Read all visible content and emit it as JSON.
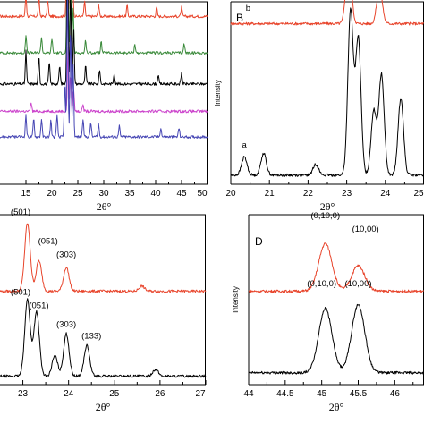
{
  "chart_data": [
    {
      "id": "A",
      "type": "line",
      "panel_label": "",
      "xlabel": "2θ°",
      "ylabel": "",
      "xlim": [
        10,
        50
      ],
      "xticks": [
        15,
        20,
        25,
        30,
        35,
        40,
        45,
        50
      ],
      "grid": false,
      "series": [
        {
          "name": "",
          "color": "#e8452c",
          "baseline": 0.92,
          "peaks": [
            [
              22.9,
              0.55
            ],
            [
              23.5,
              0.35
            ],
            [
              24.0,
              0.2
            ],
            [
              15.0,
              0.12
            ],
            [
              17.5,
              0.1
            ],
            [
              19.2,
              0.09
            ],
            [
              26.3,
              0.08
            ],
            [
              29.0,
              0.07
            ],
            [
              34.5,
              0.06
            ],
            [
              40.2,
              0.05
            ],
            [
              45.0,
              0.05
            ]
          ]
        },
        {
          "name": "",
          "color": "#3a8a3a",
          "baseline": 0.72,
          "peaks": [
            [
              23.0,
              0.8
            ],
            [
              23.6,
              0.45
            ],
            [
              24.1,
              0.25
            ],
            [
              15.0,
              0.1
            ],
            [
              18.0,
              0.09
            ],
            [
              20.0,
              0.08
            ],
            [
              26.5,
              0.07
            ],
            [
              29.5,
              0.06
            ],
            [
              36.0,
              0.05
            ],
            [
              45.5,
              0.05
            ]
          ]
        },
        {
          "name": "",
          "color": "#000000",
          "baseline": 0.55,
          "peaks": [
            [
              23.0,
              1.0
            ],
            [
              23.6,
              0.5
            ],
            [
              24.2,
              0.3
            ],
            [
              15.0,
              0.18
            ],
            [
              17.5,
              0.15
            ],
            [
              19.5,
              0.12
            ],
            [
              21.5,
              0.1
            ],
            [
              26.5,
              0.1
            ],
            [
              29.2,
              0.08
            ],
            [
              32.0,
              0.06
            ],
            [
              40.5,
              0.05
            ],
            [
              45.0,
              0.06
            ]
          ]
        },
        {
          "name": "",
          "color": "#cc44cc",
          "baseline": 0.4,
          "peaks": [
            [
              23.1,
              0.35
            ],
            [
              23.6,
              0.2
            ],
            [
              24.2,
              0.12
            ],
            [
              16.0,
              0.05
            ],
            [
              26.0,
              0.04
            ]
          ]
        },
        {
          "name": "",
          "color": "#4646b4",
          "baseline": 0.26,
          "peaks": [
            [
              23.0,
              0.85
            ],
            [
              23.6,
              0.6
            ],
            [
              24.1,
              0.4
            ],
            [
              22.5,
              0.3
            ],
            [
              15.0,
              0.12
            ],
            [
              16.5,
              0.1
            ],
            [
              18.0,
              0.1
            ],
            [
              19.8,
              0.09
            ],
            [
              21.0,
              0.12
            ],
            [
              26.0,
              0.1
            ],
            [
              27.5,
              0.08
            ],
            [
              29.0,
              0.07
            ],
            [
              33.0,
              0.06
            ],
            [
              41.0,
              0.05
            ],
            [
              44.5,
              0.05
            ]
          ]
        }
      ],
      "annotations": []
    },
    {
      "id": "B",
      "type": "line",
      "panel_label": "B",
      "xlabel": "2θ°",
      "ylabel": "Intensity",
      "xlim": [
        20,
        25
      ],
      "xticks": [
        20,
        21,
        22,
        23,
        24,
        25
      ],
      "grid": false,
      "series": [
        {
          "name": "b",
          "color": "#e8452c",
          "baseline": 0.88,
          "peaks": [
            [
              23.05,
              0.35
            ],
            [
              23.85,
              0.2
            ]
          ]
        },
        {
          "name": "a",
          "color": "#000000",
          "baseline": 0.05,
          "peaks": [
            [
              20.35,
              0.1
            ],
            [
              20.85,
              0.12
            ],
            [
              22.2,
              0.06
            ],
            [
              23.1,
              0.9
            ],
            [
              23.3,
              0.75
            ],
            [
              23.7,
              0.35
            ],
            [
              23.9,
              0.55
            ],
            [
              24.4,
              0.42
            ]
          ]
        }
      ],
      "annotations": [
        {
          "text": "b",
          "x": 20.45,
          "y": 0.95
        },
        {
          "text": "a",
          "x": 20.35,
          "y": 0.2
        }
      ]
    },
    {
      "id": "C",
      "type": "line",
      "panel_label": "",
      "xlabel": "2θ°",
      "ylabel": "",
      "xlim": [
        22.5,
        27
      ],
      "xticks": [
        23,
        24,
        25,
        26,
        27
      ],
      "grid": false,
      "series": [
        {
          "name": "",
          "color": "#e8452c",
          "baseline": 0.55,
          "peaks": [
            [
              23.1,
              0.4
            ],
            [
              23.35,
              0.18
            ],
            [
              23.95,
              0.14
            ],
            [
              25.6,
              0.03
            ]
          ]
        },
        {
          "name": "",
          "color": "#000000",
          "baseline": 0.05,
          "peaks": [
            [
              23.1,
              0.45
            ],
            [
              23.3,
              0.38
            ],
            [
              23.7,
              0.12
            ],
            [
              23.95,
              0.25
            ],
            [
              24.4,
              0.18
            ],
            [
              25.9,
              0.04
            ]
          ]
        }
      ],
      "annotations": [
        {
          "text": "(501)",
          "x": 22.95,
          "y": 1.0
        },
        {
          "text": "(051)",
          "x": 23.55,
          "y": 0.83
        },
        {
          "text": "(303)",
          "x": 23.95,
          "y": 0.75
        },
        {
          "text": "(501)",
          "x": 22.95,
          "y": 0.53
        },
        {
          "text": "(051)",
          "x": 23.35,
          "y": 0.45
        },
        {
          "text": "(303)",
          "x": 23.95,
          "y": 0.34
        },
        {
          "text": "(133)",
          "x": 24.5,
          "y": 0.27
        }
      ]
    },
    {
      "id": "D",
      "type": "line",
      "panel_label": "D",
      "xlabel": "2θ°",
      "ylabel": "Intensity",
      "xlim": [
        44.0,
        46.4
      ],
      "xticks": [
        44.0,
        44.5,
        45.0,
        45.5,
        46.0
      ],
      "grid": false,
      "series": [
        {
          "name": "",
          "color": "#e8452c",
          "baseline": 0.55,
          "peaks": [
            [
              45.05,
              0.28
            ],
            [
              45.5,
              0.15
            ]
          ]
        },
        {
          "name": "",
          "color": "#000000",
          "baseline": 0.07,
          "peaks": [
            [
              45.05,
              0.38
            ],
            [
              45.5,
              0.4
            ]
          ]
        }
      ],
      "annotations": [
        {
          "text": "(0,10,0)",
          "x": 45.05,
          "y": 0.98
        },
        {
          "text": "(10,00)",
          "x": 45.6,
          "y": 0.9
        },
        {
          "text": "(0,10,0)",
          "x": 45.0,
          "y": 0.58
        },
        {
          "text": "(10,00)",
          "x": 45.5,
          "y": 0.58
        }
      ]
    }
  ]
}
